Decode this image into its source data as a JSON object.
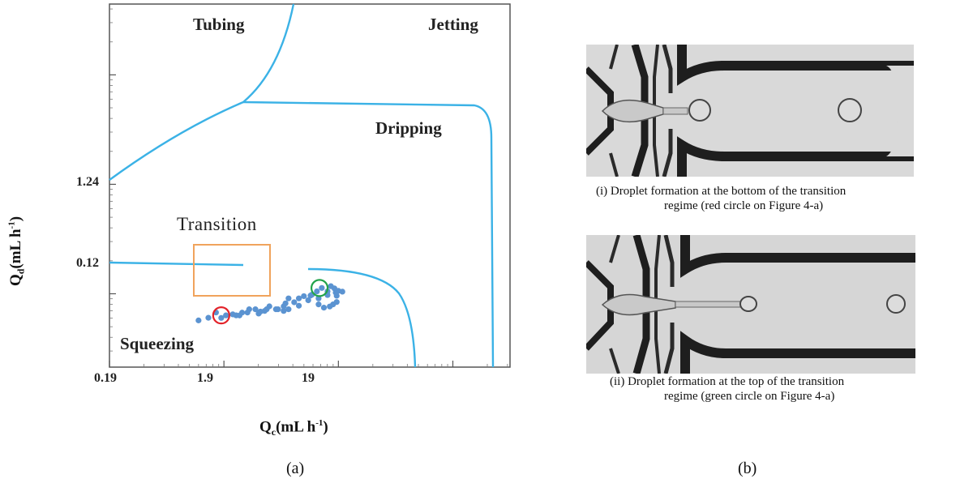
{
  "panel_a": {
    "regions": {
      "tubing": "Tubing",
      "jetting": "Jetting",
      "dripping": "Dripping",
      "squeezing": "Squeezing",
      "transition": "Transition"
    },
    "y_axis_title": {
      "q": "Q",
      "sub": "d",
      "units": "(mL h",
      "exp": "-1",
      "close": ")"
    },
    "x_axis_title": {
      "q": "Q",
      "sub": "c",
      "units": "(mL h",
      "exp": "-1",
      "close": ")"
    },
    "panel_tag": "(a)"
  },
  "chart_data": {
    "type": "scatter",
    "xscale": "log",
    "yscale": "log",
    "x_tick_labels": [
      "0.19",
      "1.9",
      "19"
    ],
    "y_tick_labels": [
      "1.24",
      "0.12"
    ],
    "xlim": [
      0.19,
      600
    ],
    "ylim": [
      0.0265,
      55
    ],
    "series": [
      {
        "x": [
          1.14,
          1.39,
          1.62,
          1.8,
          1.98,
          2.27,
          2.6,
          2.74,
          3.16,
          3.58,
          3.82,
          4.31,
          4.74,
          5.41,
          6.32,
          6.32,
          6.56,
          6.97,
          7.81,
          8.58,
          9.49,
          10.85,
          12.33,
          13.61,
          15.28,
          16.33,
          17.53,
          18.0,
          19.0,
          20.58,
          11.16,
          12.76,
          14.2,
          15.98,
          17.07,
          18.36,
          3.96,
          4.49,
          5.64,
          6.97,
          8.58,
          10.36,
          12.76,
          15.28,
          18.36,
          2.43,
          3.05
        ],
        "y": [
          0.0708,
          0.0748,
          0.0837,
          0.0746,
          0.0787,
          0.0804,
          0.0786,
          0.0834,
          0.0895,
          0.0895,
          0.0817,
          0.0864,
          0.0952,
          0.0895,
          0.0864,
          0.0952,
          0.1014,
          0.1125,
          0.1037,
          0.1125,
          0.1179,
          0.1193,
          0.1304,
          0.1401,
          0.1304,
          0.1454,
          0.139,
          0.1273,
          0.1319,
          0.1296,
          0.1218,
          0.0991,
          0.0926,
          0.0949,
          0.0991,
          0.1042,
          0.0852,
          0.0895,
          0.0895,
          0.0895,
          0.0964,
          0.1082,
          0.1125,
          0.1208,
          0.1189,
          0.0787,
          0.0836
        ]
      }
    ],
    "highlights": [
      {
        "x": 1.8,
        "y": 0.0787,
        "color": "#e3232a"
      },
      {
        "x": 13.0,
        "y": 0.14,
        "color": "#22a34a"
      }
    ],
    "colors": {
      "curves": "#3bb2e6",
      "points": "#5b93d1",
      "box": "#f0a35c"
    }
  },
  "panel_b": {
    "caption_i_line1": "(i)   Droplet formation at the bottom of the transition",
    "caption_i_line2": "regime (red circle on Figure 4-a)",
    "caption_ii_line1": "(ii)  Droplet formation at the top of the transition",
    "caption_ii_line2": "regime (green circle on Figure 4-a)",
    "panel_tag": "(b)"
  }
}
